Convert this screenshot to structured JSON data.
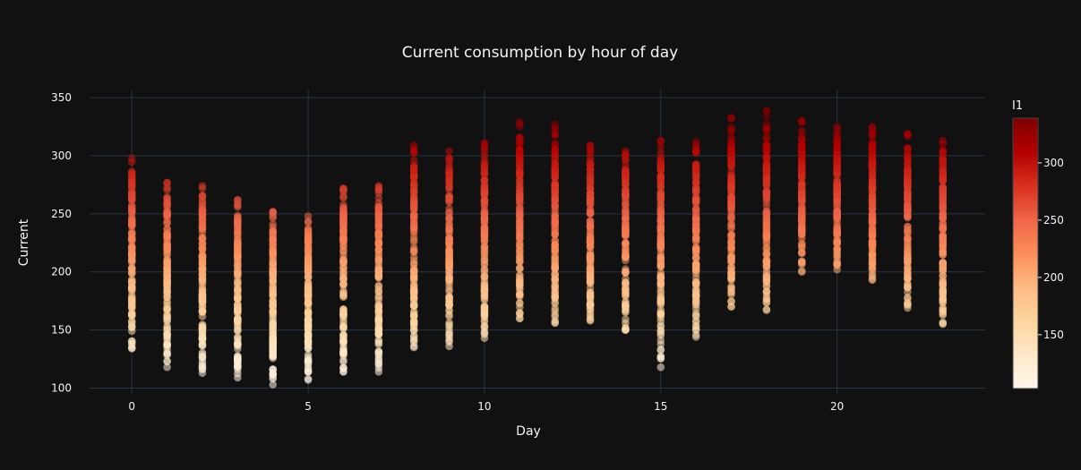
{
  "chart_data": {
    "type": "scatter",
    "title": "Current consumption by hour of day",
    "xlabel": "Day",
    "ylabel": "Current",
    "xlim": [
      -1.2,
      24.2
    ],
    "ylim": [
      95,
      357
    ],
    "xticks": [
      0,
      5,
      10,
      15,
      20
    ],
    "yticks": [
      100,
      150,
      200,
      250,
      300,
      350
    ],
    "colorbar": {
      "title": "I1",
      "ticks": [
        150,
        200,
        250,
        300
      ],
      "range": [
        103,
        339
      ],
      "colorscale": "OrRd"
    },
    "grid": true,
    "series": [
      {
        "hours": [
          0,
          1,
          2,
          3,
          4,
          5,
          6,
          7,
          8,
          9,
          10,
          11,
          12,
          13,
          14,
          15,
          16,
          17,
          18,
          19,
          20,
          21,
          22,
          23
        ],
        "min": [
          134,
          118,
          113,
          109,
          103,
          107,
          114,
          114,
          135,
          136,
          143,
          160,
          156,
          158,
          150,
          118,
          144,
          170,
          167,
          200,
          202,
          193,
          169,
          155
        ],
        "max": [
          298,
          277,
          274,
          262,
          252,
          248,
          272,
          274,
          309,
          304,
          311,
          329,
          327,
          309,
          304,
          313,
          312,
          333,
          339,
          330,
          325,
          325,
          319,
          313
        ]
      }
    ]
  }
}
